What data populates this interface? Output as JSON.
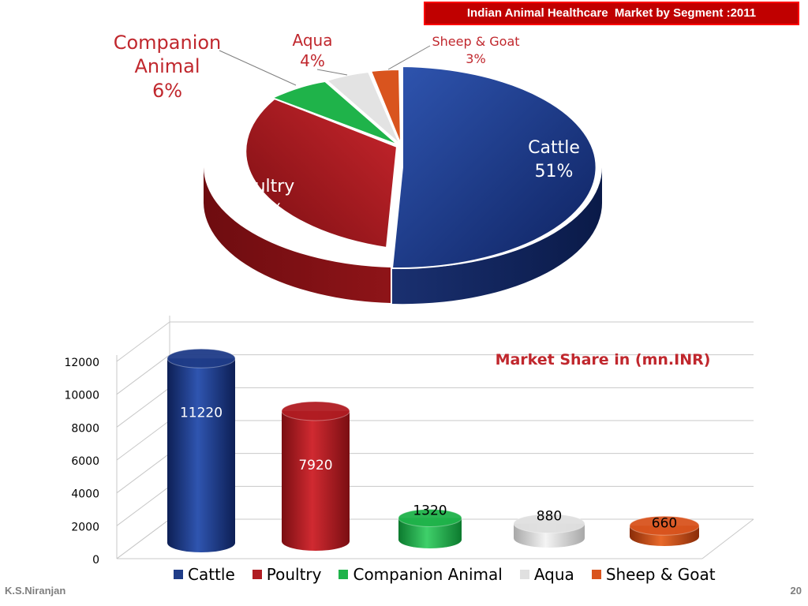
{
  "slide": {
    "author": "K.S.Niranjan",
    "page_number": "20"
  },
  "chart_data": [
    {
      "type": "pie",
      "title": "Indian Animal Healthcare  Market by Segment :2011",
      "slices": [
        {
          "name": "Cattle",
          "value": 51,
          "label": "51%",
          "color": "#1f3c88"
        },
        {
          "name": "Poultry",
          "value": 36,
          "label": "36%",
          "color": "#b01c22"
        },
        {
          "name": "Companion Animal",
          "value": 6,
          "label": "6%",
          "color": "#1fb34a"
        },
        {
          "name": "Aqua",
          "value": 4,
          "label": "4%",
          "color": "#e0e0e0"
        },
        {
          "name": "Sheep & Goat",
          "value": 3,
          "label": "3%",
          "color": "#d9541e"
        }
      ],
      "labels": {
        "cattle": {
          "name": "Cattle",
          "pct": "51%"
        },
        "poultry": {
          "name": "Poultry",
          "pct": "36%"
        },
        "companion": {
          "name1": "Companion",
          "name2": "Animal",
          "pct": "6%"
        },
        "aqua": {
          "name": "Aqua",
          "pct": "4%"
        },
        "sheep": {
          "name": "Sheep & Goat",
          "pct": "3%"
        }
      }
    },
    {
      "type": "bar",
      "title": "Market Share in (mn.INR)",
      "categories": [
        "Cattle",
        "Poultry",
        "Companion Animal",
        "Aqua",
        "Sheep & Goat"
      ],
      "values": [
        11220,
        7920,
        1320,
        880,
        660
      ],
      "data_labels": [
        "11220",
        "7920",
        "1320",
        "880",
        "660"
      ],
      "colors": [
        "#1f3c88",
        "#b01c22",
        "#1fb34a",
        "#e0e0e0",
        "#d9541e"
      ],
      "ylim": [
        0,
        12000
      ],
      "yticks": [
        "0",
        "2000",
        "4000",
        "6000",
        "8000",
        "10000",
        "12000"
      ],
      "grid": true,
      "legend": "bottom"
    }
  ]
}
